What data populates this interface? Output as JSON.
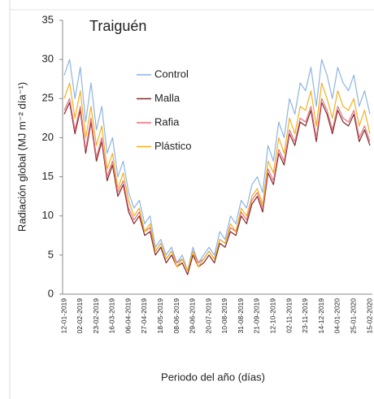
{
  "chart_data": {
    "type": "line",
    "title": "Traiguén",
    "y_label": "Radiación global (MJ m⁻² día⁻¹)",
    "x_label": "Periodo del año (días)",
    "categories": [
      "12-01-2019",
      null,
      null,
      "02-02-2019",
      null,
      null,
      "23-02-2019",
      null,
      null,
      "16-03-2019",
      null,
      null,
      "06-04-2019",
      null,
      null,
      "27-04-2019",
      null,
      null,
      "18-05-2019",
      null,
      null,
      "08-06-2019",
      null,
      null,
      "29-06-2019",
      null,
      null,
      "20-07-2019",
      null,
      null,
      "10-08-2019",
      null,
      null,
      "31-08-2019",
      null,
      null,
      "21-09-2019",
      null,
      null,
      "12-10-2019",
      null,
      null,
      "02-11-2019",
      null,
      null,
      "23-11-2019",
      null,
      null,
      "14-12-2019",
      null,
      null,
      "04-01-2020",
      null,
      null,
      "25-01-2020",
      null,
      null,
      "15-02-2020"
    ],
    "series": [
      {
        "name": "Control",
        "color": "#8db4e2",
        "values": [
          28,
          30,
          25,
          29,
          22,
          27,
          21,
          24,
          18,
          20,
          15,
          17,
          13,
          11,
          12,
          9,
          10,
          6,
          7,
          5,
          6,
          4,
          5,
          3,
          6,
          4,
          5,
          6,
          5,
          8,
          7,
          10,
          9,
          12,
          11,
          14,
          15,
          13,
          19,
          17,
          22,
          20,
          25,
          23,
          27,
          26,
          29,
          24,
          30,
          28,
          25,
          29,
          27,
          26,
          28,
          24,
          26,
          23
        ]
      },
      {
        "name": "Malla",
        "color": "#7a2a2a",
        "values": [
          23,
          24.5,
          20.5,
          23.5,
          18,
          22,
          17,
          19.5,
          14.5,
          16.5,
          12.5,
          14,
          10.5,
          9,
          10,
          7.5,
          8,
          5,
          6,
          4,
          5,
          3.5,
          4,
          2.5,
          5,
          3.5,
          4,
          5,
          4,
          6.5,
          6,
          8,
          7.5,
          10,
          9,
          11.5,
          12.5,
          10.5,
          15.5,
          14,
          18,
          16.5,
          20.5,
          19,
          22,
          21.5,
          23.5,
          19.5,
          24.5,
          23,
          20.5,
          23.5,
          22,
          21.5,
          23,
          19.5,
          21,
          19
        ]
      },
      {
        "name": "Rafia",
        "color": "#e8707e",
        "values": [
          23.5,
          25,
          21,
          24,
          18.5,
          22.5,
          17.5,
          20,
          15,
          17,
          13,
          14.5,
          11,
          9.5,
          10.5,
          8,
          8.5,
          5.5,
          6.5,
          4.5,
          5.5,
          4,
          4.5,
          3,
          5.5,
          4,
          4.5,
          5.5,
          4.5,
          7,
          6.5,
          8.5,
          8,
          10.5,
          9.5,
          12,
          13,
          11,
          16,
          14.5,
          18.5,
          17,
          21,
          19.5,
          22.5,
          22,
          24,
          20,
          25,
          23.5,
          21,
          24,
          22.5,
          22,
          23.5,
          20,
          21.5,
          19.5
        ]
      },
      {
        "name": "Plástico",
        "color": "#f2b01e",
        "values": [
          25,
          27,
          22.5,
          26,
          20,
          24,
          19,
          21.5,
          16,
          18,
          13.5,
          15.5,
          12,
          10,
          11,
          8,
          9,
          5.5,
          6.5,
          4.5,
          5.5,
          3.5,
          4.5,
          3,
          5.5,
          3.5,
          4.5,
          5.5,
          4.5,
          7,
          6.5,
          9,
          8,
          11,
          10,
          12.5,
          13.5,
          11.5,
          17,
          15.5,
          20,
          18,
          22.5,
          20.5,
          24,
          23.5,
          26,
          21.5,
          27,
          25,
          22.5,
          26,
          24,
          23.5,
          25,
          21.5,
          23.5,
          20.5
        ]
      }
    ],
    "ylim": [
      0,
      35
    ],
    "yticks": [
      0,
      5,
      10,
      15,
      20,
      25,
      30,
      35
    ],
    "grid": false
  }
}
